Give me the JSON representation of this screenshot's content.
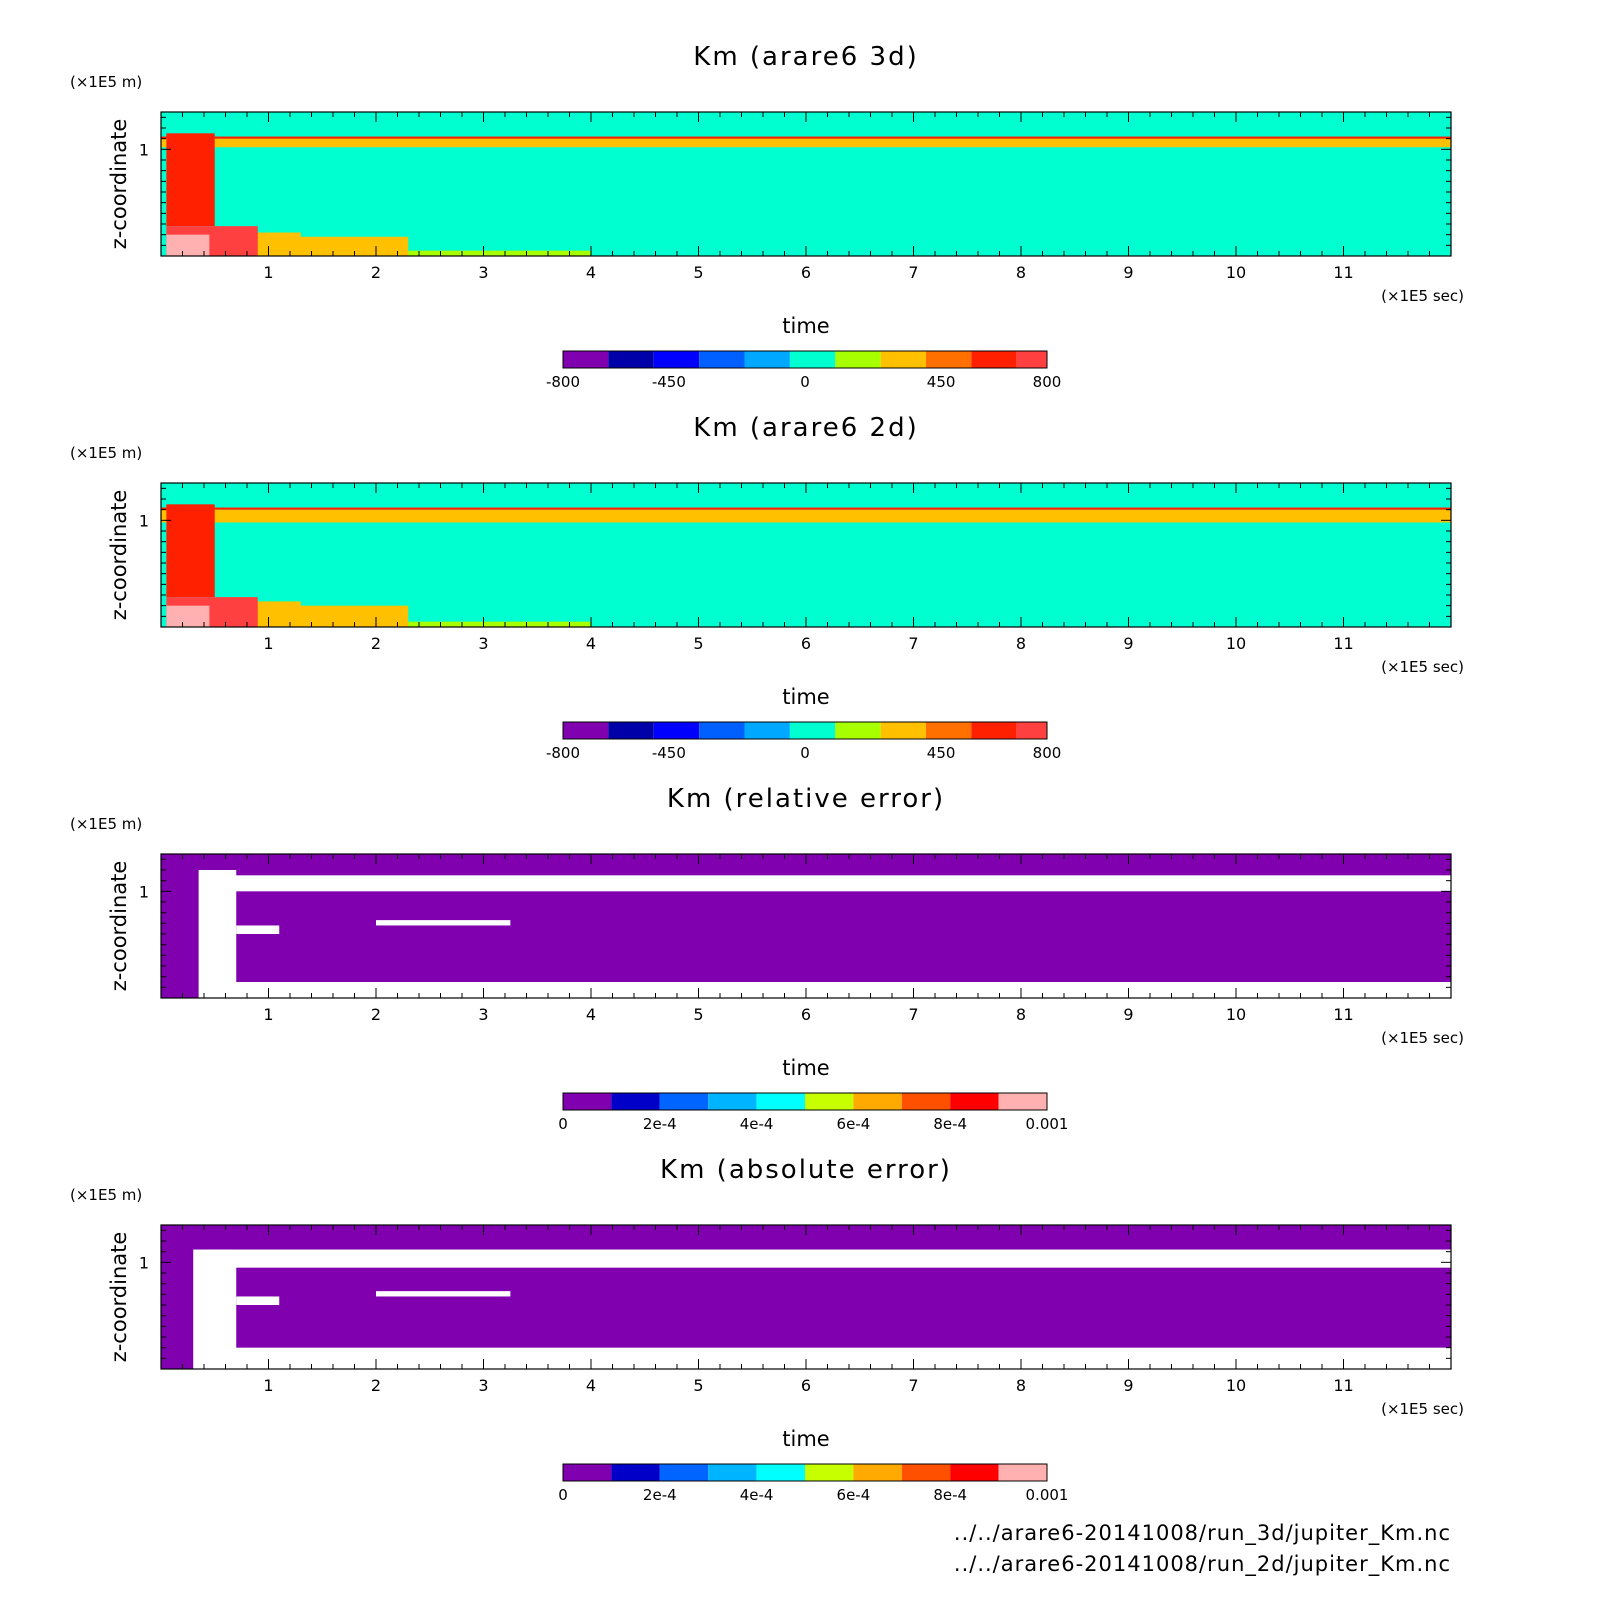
{
  "colors": {
    "diverging": [
      "#8000b0",
      "#0000a8",
      "#0000ff",
      "#0060ff",
      "#00a8ff",
      "#00ffd0",
      "#a8ff00",
      "#ffc000",
      "#ff7000",
      "#ff2000",
      "#ff4040",
      "#ffb0b0"
    ],
    "sequential": [
      "#8000b0",
      "#0000c8",
      "#0064ff",
      "#00b4ff",
      "#00ffff",
      "#c8ff00",
      "#ffaa00",
      "#ff5000",
      "#ff0000",
      "#ffb0b0"
    ],
    "missing": "#ffffff"
  },
  "chart_data": [
    {
      "type": "heatmap",
      "title": "Km (arare6 3d)",
      "xlabel": "time",
      "ylabel": "z-coordinate",
      "xunit": "(×1E5 sec)",
      "yunit": "(×1E5 m)",
      "xlim": [
        0,
        12
      ],
      "ylim": [
        0,
        1.35
      ],
      "xticks": [
        "1",
        "2",
        "3",
        "4",
        "5",
        "6",
        "7",
        "8",
        "9",
        "10",
        "11"
      ],
      "yticks": [
        "1"
      ],
      "background_level": 0,
      "colorbar": {
        "levels": [
          -800,
          -650,
          -500,
          -350,
          -200,
          -50,
          100,
          250,
          400,
          550,
          700,
          800
        ],
        "ticks": [
          "-800",
          "-450",
          "0",
          "450",
          "800"
        ],
        "tick_values": [
          -800,
          -450,
          0,
          450,
          800
        ],
        "range": [
          -800,
          800
        ],
        "palette": "diverging"
      },
      "regions": [
        {
          "level": 350,
          "x": [
            0,
            12
          ],
          "y": [
            1.02,
            1.1
          ]
        },
        {
          "level": 650,
          "x": [
            0,
            12
          ],
          "y": [
            1.1,
            1.12
          ]
        },
        {
          "level": 250,
          "x": [
            0.5,
            2.3
          ],
          "y": [
            0,
            0.18
          ]
        },
        {
          "level": 350,
          "x": [
            0.8,
            1.3
          ],
          "y": [
            0,
            0.22
          ]
        },
        {
          "level": 200,
          "x": [
            2.3,
            4.0
          ],
          "y": [
            0,
            0.05
          ]
        },
        {
          "level": 650,
          "x": [
            0.05,
            0.5
          ],
          "y": [
            0.28,
            1.15
          ]
        },
        {
          "level": 700,
          "x": [
            0.05,
            0.9
          ],
          "y": [
            0,
            0.28
          ]
        },
        {
          "level": 800,
          "x": [
            0.05,
            0.45
          ],
          "y": [
            0,
            0.2
          ]
        }
      ]
    },
    {
      "type": "heatmap",
      "title": "Km (arare6 2d)",
      "xlabel": "time",
      "ylabel": "z-coordinate",
      "xunit": "(×1E5 sec)",
      "yunit": "(×1E5 m)",
      "xlim": [
        0,
        12
      ],
      "ylim": [
        0,
        1.35
      ],
      "xticks": [
        "1",
        "2",
        "3",
        "4",
        "5",
        "6",
        "7",
        "8",
        "9",
        "10",
        "11"
      ],
      "yticks": [
        "1"
      ],
      "background_level": 0,
      "colorbar": {
        "levels": [
          -800,
          -650,
          -500,
          -350,
          -200,
          -50,
          100,
          250,
          400,
          550,
          700,
          800
        ],
        "ticks": [
          "-800",
          "-450",
          "0",
          "450",
          "800"
        ],
        "tick_values": [
          -800,
          -450,
          0,
          450,
          800
        ],
        "range": [
          -800,
          800
        ],
        "palette": "diverging"
      },
      "regions": [
        {
          "level": 350,
          "x": [
            0,
            12
          ],
          "y": [
            0.98,
            1.1
          ]
        },
        {
          "level": 650,
          "x": [
            0,
            12
          ],
          "y": [
            1.1,
            1.12
          ]
        },
        {
          "level": 250,
          "x": [
            0.5,
            2.3
          ],
          "y": [
            0,
            0.2
          ]
        },
        {
          "level": 350,
          "x": [
            0.8,
            1.3
          ],
          "y": [
            0,
            0.24
          ]
        },
        {
          "level": 200,
          "x": [
            2.3,
            4.0
          ],
          "y": [
            0,
            0.05
          ]
        },
        {
          "level": 650,
          "x": [
            0.05,
            0.5
          ],
          "y": [
            0.28,
            1.15
          ]
        },
        {
          "level": 700,
          "x": [
            0.05,
            0.9
          ],
          "y": [
            0,
            0.28
          ]
        },
        {
          "level": 800,
          "x": [
            0.05,
            0.45
          ],
          "y": [
            0,
            0.2
          ]
        }
      ]
    },
    {
      "type": "heatmap",
      "title": "Km (relative error)",
      "xlabel": "time",
      "ylabel": "z-coordinate",
      "xunit": "(×1E5 sec)",
      "yunit": "(×1E5 m)",
      "xlim": [
        0,
        12
      ],
      "ylim": [
        0,
        1.35
      ],
      "xticks": [
        "1",
        "2",
        "3",
        "4",
        "5",
        "6",
        "7",
        "8",
        "9",
        "10",
        "11"
      ],
      "yticks": [
        "1"
      ],
      "background_level": 0,
      "colorbar": {
        "levels": [
          0,
          0.0001,
          0.0002,
          0.0003,
          0.0004,
          0.0005,
          0.0006,
          0.0007,
          0.0008,
          0.0009,
          0.001
        ],
        "ticks": [
          "0",
          "2e-4",
          "4e-4",
          "6e-4",
          "8e-4",
          "0.001"
        ],
        "tick_values": [
          0,
          0.0002,
          0.0004,
          0.0006,
          0.0008,
          0.001
        ],
        "range": [
          0,
          0.001
        ],
        "palette": "sequential"
      },
      "missing_regions": [
        {
          "x": [
            0.4,
            12
          ],
          "y": [
            1.0,
            1.15
          ]
        },
        {
          "x": [
            0.4,
            12
          ],
          "y": [
            0,
            0.15
          ]
        },
        {
          "x": [
            0.35,
            0.7
          ],
          "y": [
            0,
            1.2
          ]
        },
        {
          "x": [
            0.7,
            1.1
          ],
          "y": [
            0.6,
            0.68
          ]
        },
        {
          "x": [
            2.0,
            3.25
          ],
          "y": [
            0.68,
            0.73
          ]
        }
      ]
    },
    {
      "type": "heatmap",
      "title": "Km (absolute error)",
      "xlabel": "time",
      "ylabel": "z-coordinate",
      "xunit": "(×1E5 sec)",
      "yunit": "(×1E5 m)",
      "xlim": [
        0,
        12
      ],
      "ylim": [
        0,
        1.35
      ],
      "xticks": [
        "1",
        "2",
        "3",
        "4",
        "5",
        "6",
        "7",
        "8",
        "9",
        "10",
        "11"
      ],
      "yticks": [
        "1"
      ],
      "background_level": 0,
      "colorbar": {
        "levels": [
          0,
          0.0001,
          0.0002,
          0.0003,
          0.0004,
          0.0005,
          0.0006,
          0.0007,
          0.0008,
          0.0009,
          0.001
        ],
        "ticks": [
          "0",
          "2e-4",
          "4e-4",
          "6e-4",
          "8e-4",
          "0.001"
        ],
        "tick_values": [
          0,
          0.0002,
          0.0004,
          0.0006,
          0.0008,
          0.001
        ],
        "range": [
          0,
          0.001
        ],
        "palette": "sequential"
      },
      "missing_regions": [
        {
          "x": [
            0.4,
            12
          ],
          "y": [
            0.95,
            1.12
          ]
        },
        {
          "x": [
            0.4,
            12
          ],
          "y": [
            0,
            0.2
          ]
        },
        {
          "x": [
            0.3,
            0.7
          ],
          "y": [
            0,
            1.12
          ]
        },
        {
          "x": [
            0.7,
            1.1
          ],
          "y": [
            0.6,
            0.68
          ]
        },
        {
          "x": [
            2.0,
            3.25
          ],
          "y": [
            0.68,
            0.73
          ]
        }
      ]
    }
  ],
  "files": [
    "../../arare6-20141008/run_3d/jupiter_Km.nc",
    "../../arare6-20141008/run_2d/jupiter_Km.nc"
  ]
}
